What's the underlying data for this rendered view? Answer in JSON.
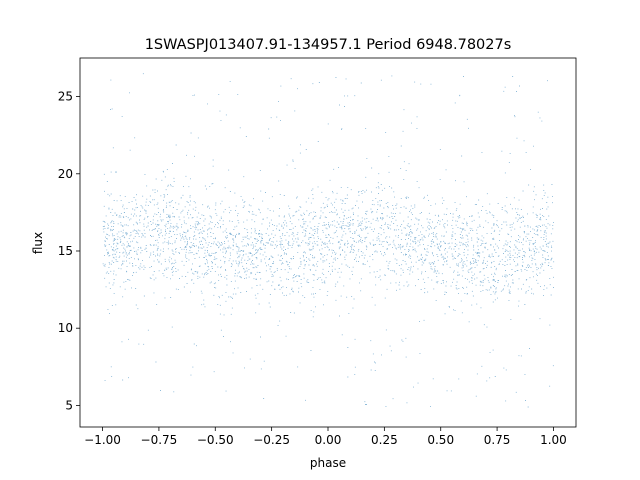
{
  "chart_data": {
    "type": "scatter",
    "title": "1SWASPJ013407.91-134957.1 Period 6948.78027s",
    "xlabel": "phase",
    "ylabel": "flux",
    "xlim": [
      -1.1,
      1.1
    ],
    "ylim": [
      3.6,
      27.5
    ],
    "xticks": [
      -1.0,
      -0.75,
      -0.5,
      -0.25,
      0.0,
      0.25,
      0.5,
      0.75,
      1.0
    ],
    "xtick_labels": [
      "−1.00",
      "−0.75",
      "−0.50",
      "−0.25",
      "0.00",
      "0.25",
      "0.50",
      "0.75",
      "1.00"
    ],
    "yticks": [
      5,
      10,
      15,
      20,
      25
    ],
    "ytick_labels": [
      "5",
      "10",
      "15",
      "20",
      "25"
    ],
    "grid": false,
    "legend": "none",
    "point_color": "#1f77b4",
    "series": [
      {
        "x_range": [
          -1.0,
          1.0
        ],
        "phase_profile": {
          "x": [
            -1.0,
            -0.75,
            -0.5,
            -0.25,
            0.0,
            0.25,
            0.5,
            0.75,
            1.0
          ],
          "y": [
            15.5,
            16.2,
            15.2,
            14.9,
            15.8,
            16.3,
            15.1,
            14.7,
            15.5
          ]
        },
        "core_spread": 1.6,
        "outlier_range": [
          4.8,
          26.5
        ]
      }
    ]
  }
}
